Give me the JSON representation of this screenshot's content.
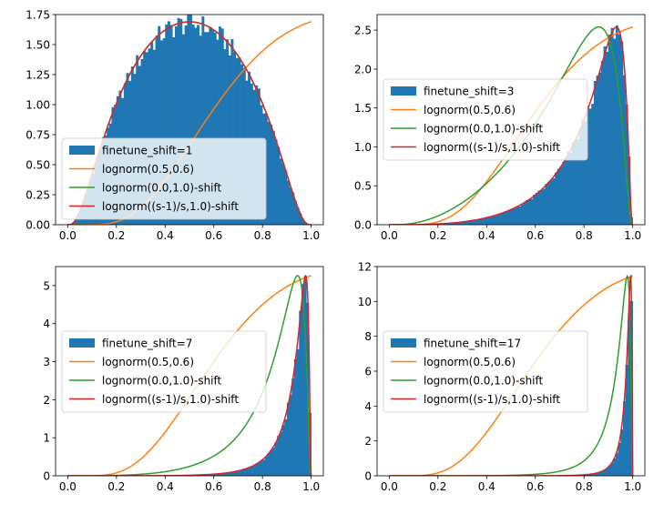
{
  "figure": {
    "type": "2x2 histogram grid with fitted lognormal curves"
  },
  "legend_labels": {
    "lognorm_a": "lognorm(0.5,0.6)",
    "lognorm_b": "lognorm(0.0,1.0)-shift",
    "lognorm_c": "lognorm((s-1)/s,1.0)-shift"
  },
  "colors": {
    "hist": "#1f77b4",
    "lognorm_a": "#ff7f0e",
    "lognorm_b": "#2ca02c",
    "lognorm_c": "#d62728"
  },
  "chart_data": [
    {
      "type": "histogram+line",
      "shift": 1,
      "hist_label": "finetune_shift=1",
      "xlim": [
        -0.05,
        1.05
      ],
      "ylim": [
        0,
        1.75
      ],
      "xticks": [
        0.0,
        0.2,
        0.4,
        0.6,
        0.8,
        1.0
      ],
      "xtick_labels": [
        "0.0",
        "0.2",
        "0.4",
        "0.6",
        "0.8",
        "1.0"
      ],
      "yticks": [
        0,
        0.25,
        0.5,
        0.75,
        1.0,
        1.25,
        1.5,
        1.75
      ],
      "ytick_labels": [
        "0.00",
        "0.25",
        "0.50",
        "0.75",
        "1.00",
        "1.25",
        "1.50",
        "1.75"
      ],
      "curve_peak": 1.69,
      "legend_loc": "lower-left"
    },
    {
      "type": "histogram+line",
      "shift": 3,
      "hist_label": "finetune_shift=3",
      "xlim": [
        -0.05,
        1.05
      ],
      "ylim": [
        0,
        2.7
      ],
      "xticks": [
        0.0,
        0.2,
        0.4,
        0.6,
        0.8,
        1.0
      ],
      "xtick_labels": [
        "0.0",
        "0.2",
        "0.4",
        "0.6",
        "0.8",
        "1.0"
      ],
      "yticks": [
        0,
        0.5,
        1.0,
        1.5,
        2.0,
        2.5
      ],
      "ytick_labels": [
        "0.0",
        "0.5",
        "1.0",
        "1.5",
        "2.0",
        "2.5"
      ],
      "curve_peak": 2.54,
      "legend_loc": "center-left"
    },
    {
      "type": "histogram+line",
      "shift": 7,
      "hist_label": "finetune_shift=7",
      "xlim": [
        -0.05,
        1.05
      ],
      "ylim": [
        0,
        5.5
      ],
      "xticks": [
        0.0,
        0.2,
        0.4,
        0.6,
        0.8,
        1.0
      ],
      "xtick_labels": [
        "0.0",
        "0.2",
        "0.4",
        "0.6",
        "0.8",
        "1.0"
      ],
      "yticks": [
        0,
        1,
        2,
        3,
        4,
        5
      ],
      "ytick_labels": [
        "0",
        "1",
        "2",
        "3",
        "4",
        "5"
      ],
      "curve_peak": 5.26,
      "legend_loc": "center-left"
    },
    {
      "type": "histogram+line",
      "shift": 17,
      "hist_label": "finetune_shift=17",
      "xlim": [
        -0.05,
        1.05
      ],
      "ylim": [
        0,
        12.0
      ],
      "xticks": [
        0.0,
        0.2,
        0.4,
        0.6,
        0.8,
        1.0
      ],
      "xtick_labels": [
        "0.0",
        "0.2",
        "0.4",
        "0.6",
        "0.8",
        "1.0"
      ],
      "yticks": [
        0,
        2,
        4,
        6,
        8,
        10,
        12
      ],
      "ytick_labels": [
        "0",
        "2",
        "4",
        "6",
        "8",
        "10",
        "12"
      ],
      "curve_peak": 11.45,
      "legend_loc": "center-left"
    }
  ]
}
